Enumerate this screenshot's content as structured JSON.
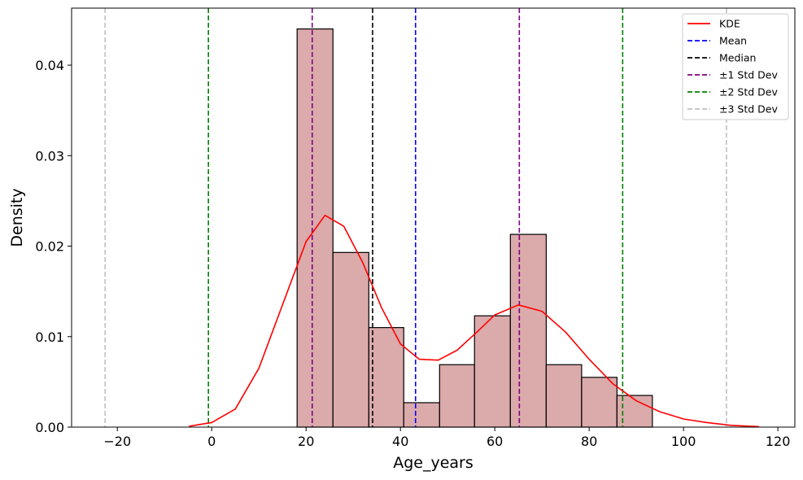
{
  "chart_data": {
    "type": "bar",
    "title": "",
    "xlabel": "Age_years",
    "ylabel": "Density",
    "xlim": [
      -29.7,
      123.6
    ],
    "ylim": [
      0,
      0.0463
    ],
    "xticks": [
      -20,
      0,
      20,
      40,
      60,
      80,
      100,
      120
    ],
    "yticks": [
      0.0,
      0.01,
      0.02,
      0.03,
      0.04
    ],
    "ytick_labels": [
      "0.00",
      "0.01",
      "0.02",
      "0.03",
      "0.04"
    ],
    "histogram": {
      "bin_edges": [
        18.1,
        25.7,
        33.3,
        40.7,
        48.3,
        55.7,
        63.3,
        70.9,
        78.4,
        85.9,
        93.4
      ],
      "density": [
        0.044,
        0.0193,
        0.011,
        0.0027,
        0.0069,
        0.0123,
        0.0213,
        0.0069,
        0.0055,
        0.0035
      ],
      "color": "#dbaaab"
    },
    "kde": {
      "name": "KDE",
      "color": "#ff0000",
      "x": [
        -4.8,
        0,
        5,
        10,
        15,
        20,
        24,
        28,
        32,
        36,
        40,
        44,
        48,
        52,
        56,
        60,
        65,
        70,
        75,
        80,
        85,
        90,
        95,
        100,
        105,
        110,
        116
      ],
      "y": [
        0.0001,
        0.0005,
        0.002,
        0.0065,
        0.0135,
        0.0205,
        0.0234,
        0.0222,
        0.0182,
        0.0132,
        0.0092,
        0.0075,
        0.0074,
        0.0085,
        0.0104,
        0.0124,
        0.0135,
        0.0128,
        0.0105,
        0.0075,
        0.0048,
        0.0029,
        0.0017,
        0.0009,
        0.0005,
        0.0002,
        5e-05
      ]
    },
    "vlines": [
      {
        "name": "Mean",
        "color": "#0000ff",
        "x": [
          43.2
        ]
      },
      {
        "name": "Median",
        "color": "#000000",
        "x": [
          34.1
        ]
      },
      {
        "name": "±1 Std Dev",
        "color": "#800080",
        "x": [
          21.3,
          65.2
        ]
      },
      {
        "name": "±2 Std Dev",
        "color": "#008000",
        "x": [
          -0.7,
          87.1
        ]
      },
      {
        "name": "±3 Std Dev",
        "color": "#c0c0c0",
        "x": [
          -22.6,
          109.1
        ]
      }
    ],
    "legend": {
      "placement": "top-right",
      "entries": [
        "KDE",
        "Mean",
        "Median",
        "±1 Std Dev",
        "±2 Std Dev",
        "±3 Std Dev"
      ]
    },
    "grid": false
  }
}
